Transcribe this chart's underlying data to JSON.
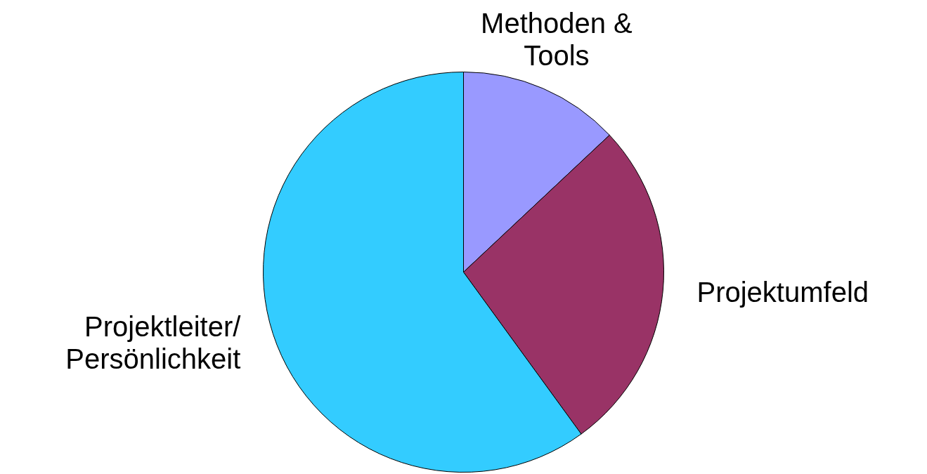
{
  "chart_data": {
    "type": "pie",
    "categories": [
      "Methoden &\nTools",
      "Projektumfeld",
      "Projektleiter/\nPersönlichkeit"
    ],
    "values": [
      13,
      27,
      60
    ],
    "colors": [
      "#9999ff",
      "#993366",
      "#33ccff"
    ]
  }
}
